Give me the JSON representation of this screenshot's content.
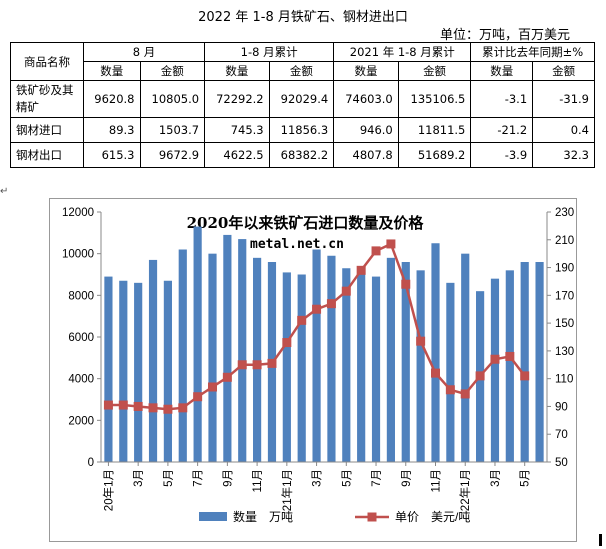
{
  "header": {
    "title": "2022 年 1-8 月铁矿石、钢材进出口",
    "unit": "单位：万吨，百万美元"
  },
  "table": {
    "corner": "商品名称",
    "groups": [
      "8 月",
      "1-8 月累计",
      "2021 年 1-8 月累计",
      "累计比去年同期±%"
    ],
    "subheaders": [
      "数量",
      "金额",
      "数量",
      "金额",
      "数量",
      "金额",
      "数量",
      "金额"
    ],
    "rows": [
      {
        "name": "铁矿砂及其精矿",
        "name_line1": "铁矿砂及其",
        "name_line2": "精矿",
        "cells": [
          "9620.8",
          "10805.0",
          "72292.2",
          "92029.4",
          "74603.0",
          "135106.5",
          "-3.1",
          "-31.9"
        ]
      },
      {
        "name": "钢材进口",
        "cells": [
          "89.3",
          "1503.7",
          "745.3",
          "11856.3",
          "946.0",
          "11811.5",
          "-21.2",
          "0.4"
        ]
      },
      {
        "name": "钢材出口",
        "cells": [
          "615.3",
          "9672.9",
          "4622.5",
          "68382.2",
          "4807.8",
          "51689.2",
          "-3.9",
          "32.3"
        ]
      }
    ]
  },
  "chart_data": {
    "type": "bar+line",
    "title": "2020年以来铁矿石进口数量及价格",
    "watermark": "metal.net.cn",
    "colors": {
      "bar": "#4f81bd",
      "line": "#c0504d"
    },
    "categories": [
      "20年1月",
      "2月",
      "3月",
      "4月",
      "5月",
      "6月",
      "7月",
      "8月",
      "9月",
      "10月",
      "11月",
      "12月",
      "21年1月",
      "2月",
      "3月",
      "4月",
      "5月",
      "6月",
      "7月",
      "8月",
      "9月",
      "10月",
      "11月",
      "12月",
      "22年1月",
      "2月",
      "3月",
      "4月",
      "5月",
      "6月"
    ],
    "x_tick_labels": [
      "20年1月",
      "3月",
      "5月",
      "7月",
      "9月",
      "11月",
      "21年1月",
      "3月",
      "5月",
      "7月",
      "9月",
      "11月",
      "22年1月",
      "3月",
      "5月"
    ],
    "x_tick_indices": [
      0,
      2,
      4,
      6,
      8,
      10,
      12,
      14,
      16,
      18,
      20,
      22,
      24,
      26,
      28
    ],
    "series": [
      {
        "name": "数量　万吨",
        "axis": "left",
        "type": "bar",
        "values": [
          8900,
          8700,
          8600,
          9700,
          8700,
          10200,
          11300,
          10000,
          10900,
          10700,
          9800,
          9600,
          9100,
          9000,
          10200,
          9900,
          9300,
          9000,
          8900,
          9800,
          9600,
          9200,
          10500,
          8600,
          10000,
          8200,
          8800,
          9200,
          9600,
          9600
        ]
      },
      {
        "name": "单价　美元/吨",
        "axis": "right",
        "type": "line",
        "values": [
          91,
          91,
          90,
          89,
          88,
          89,
          97,
          104,
          111,
          120,
          120,
          121,
          136,
          152,
          160,
          164,
          173,
          188,
          202,
          207,
          178,
          137,
          114,
          102,
          99,
          112,
          124,
          126,
          112,
          null
        ]
      }
    ],
    "y_left": {
      "min": 0,
      "max": 12000,
      "ticks": [
        0,
        2000,
        4000,
        6000,
        8000,
        10000,
        12000
      ]
    },
    "y_right": {
      "min": 50,
      "max": 230,
      "ticks": [
        50,
        70,
        90,
        110,
        130,
        150,
        170,
        190,
        210,
        230
      ]
    },
    "legend_position": "bottom"
  }
}
